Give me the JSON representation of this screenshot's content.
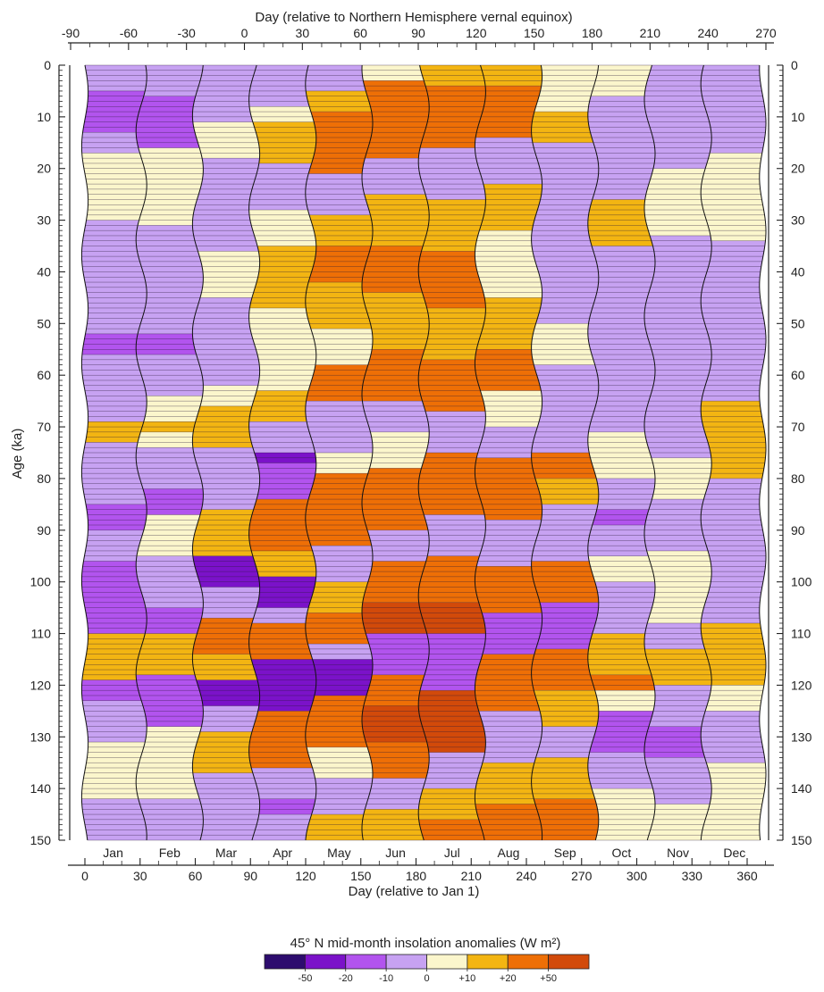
{
  "chart_data": {
    "type": "heatmap",
    "top_axis": {
      "label": "Day (relative to Northern Hemisphere vernal equinox)",
      "ticks": [
        "-90",
        "-60",
        "-30",
        "0",
        "30",
        "60",
        "90",
        "120",
        "150",
        "180",
        "210",
        "240",
        "270"
      ],
      "range": [
        -90,
        275
      ]
    },
    "bottom_axis": {
      "label": "Day (relative to Jan 1)",
      "ticks": [
        "0",
        "30",
        "60",
        "90",
        "120",
        "150",
        "180",
        "210",
        "240",
        "270",
        "300",
        "330",
        "360"
      ],
      "range": [
        -3,
        365
      ]
    },
    "y_axis": {
      "label": "Age (ka)",
      "ticks": [
        "0",
        "10",
        "20",
        "30",
        "40",
        "50",
        "60",
        "70",
        "80",
        "90",
        "100",
        "110",
        "120",
        "130",
        "140",
        "150"
      ],
      "range": [
        0,
        150
      ],
      "inverted": true
    },
    "months": [
      "Jan",
      "Feb",
      "Mar",
      "Apr",
      "May",
      "Jun",
      "Jul",
      "Aug",
      "Sep",
      "Oct",
      "Nov",
      "Dec"
    ],
    "legend": {
      "title": "45° N mid-month insolation anomalies (W m²)",
      "boundaries": [
        "-50",
        "-20",
        "-10",
        "0",
        "+10",
        "+20",
        "+50"
      ],
      "colors": [
        "#2d0c6e",
        "#7b12c9",
        "#b254ee",
        "#c7a2f2",
        "#fbf6cc",
        "#f3b512",
        "#ee6f06",
        "#d24a0a"
      ]
    },
    "segments": [
      [
        [
          0,
          5,
          3
        ],
        [
          5,
          13,
          2
        ],
        [
          13,
          17,
          3
        ],
        [
          17,
          30,
          4
        ],
        [
          30,
          150,
          3
        ],
        [
          52,
          56,
          2
        ],
        [
          69,
          73,
          5
        ],
        [
          85,
          90,
          2
        ],
        [
          96,
          110,
          2
        ],
        [
          110,
          119,
          5
        ],
        [
          119,
          123,
          2
        ],
        [
          123,
          131,
          3
        ],
        [
          131,
          142,
          4
        ],
        [
          142,
          150,
          3
        ]
      ],
      [
        [
          0,
          6,
          3
        ],
        [
          6,
          16,
          2
        ],
        [
          16,
          31,
          4
        ],
        [
          31,
          64,
          3
        ],
        [
          52,
          56,
          2
        ],
        [
          64,
          74,
          4
        ],
        [
          69,
          71,
          5
        ],
        [
          74,
          82,
          3
        ],
        [
          82,
          87,
          2
        ],
        [
          87,
          95,
          4
        ],
        [
          95,
          105,
          3
        ],
        [
          105,
          110,
          2
        ],
        [
          110,
          118,
          5
        ],
        [
          118,
          128,
          2
        ],
        [
          128,
          142,
          4
        ],
        [
          142,
          150,
          3
        ]
      ],
      [
        [
          0,
          11,
          3
        ],
        [
          11,
          18,
          4
        ],
        [
          18,
          36,
          3
        ],
        [
          36,
          45,
          4
        ],
        [
          45,
          62,
          3
        ],
        [
          62,
          66,
          4
        ],
        [
          66,
          74,
          5
        ],
        [
          74,
          86,
          3
        ],
        [
          86,
          95,
          5
        ],
        [
          95,
          101,
          1
        ],
        [
          101,
          107,
          3
        ],
        [
          107,
          114,
          6
        ],
        [
          114,
          119,
          5
        ],
        [
          119,
          124,
          1
        ],
        [
          124,
          129,
          3
        ],
        [
          129,
          137,
          5
        ],
        [
          137,
          150,
          3
        ]
      ],
      [
        [
          0,
          8,
          3
        ],
        [
          8,
          11,
          4
        ],
        [
          11,
          19,
          5
        ],
        [
          19,
          28,
          3
        ],
        [
          28,
          35,
          4
        ],
        [
          35,
          47,
          5
        ],
        [
          47,
          63,
          4
        ],
        [
          63,
          69,
          5
        ],
        [
          69,
          75,
          3
        ],
        [
          75,
          77,
          1
        ],
        [
          77,
          84,
          2
        ],
        [
          84,
          94,
          6
        ],
        [
          94,
          99,
          5
        ],
        [
          99,
          105,
          1
        ],
        [
          105,
          108,
          3
        ],
        [
          108,
          115,
          6
        ],
        [
          115,
          125,
          1
        ],
        [
          125,
          136,
          6
        ],
        [
          136,
          142,
          3
        ],
        [
          142,
          145,
          2
        ],
        [
          145,
          150,
          3
        ]
      ],
      [
        [
          0,
          5,
          3
        ],
        [
          5,
          9,
          5
        ],
        [
          9,
          21,
          6
        ],
        [
          21,
          29,
          3
        ],
        [
          29,
          35,
          5
        ],
        [
          35,
          42,
          6
        ],
        [
          42,
          51,
          5
        ],
        [
          51,
          58,
          4
        ],
        [
          58,
          65,
          6
        ],
        [
          65,
          75,
          3
        ],
        [
          75,
          79,
          4
        ],
        [
          79,
          93,
          6
        ],
        [
          93,
          100,
          3
        ],
        [
          100,
          106,
          5
        ],
        [
          106,
          112,
          6
        ],
        [
          112,
          115,
          3
        ],
        [
          115,
          122,
          1
        ],
        [
          122,
          132,
          6
        ],
        [
          132,
          138,
          4
        ],
        [
          138,
          145,
          3
        ],
        [
          145,
          150,
          5
        ]
      ],
      [
        [
          0,
          3,
          4
        ],
        [
          3,
          18,
          6
        ],
        [
          18,
          25,
          3
        ],
        [
          25,
          35,
          5
        ],
        [
          35,
          44,
          6
        ],
        [
          44,
          55,
          5
        ],
        [
          55,
          65,
          6
        ],
        [
          65,
          71,
          3
        ],
        [
          71,
          78,
          4
        ],
        [
          78,
          90,
          6
        ],
        [
          90,
          96,
          3
        ],
        [
          96,
          104,
          6
        ],
        [
          104,
          110,
          7
        ],
        [
          110,
          118,
          2
        ],
        [
          118,
          124,
          6
        ],
        [
          124,
          131,
          7
        ],
        [
          131,
          138,
          6
        ],
        [
          138,
          144,
          3
        ],
        [
          144,
          150,
          5
        ]
      ],
      [
        [
          0,
          4,
          5
        ],
        [
          4,
          16,
          6
        ],
        [
          16,
          26,
          3
        ],
        [
          26,
          36,
          5
        ],
        [
          36,
          47,
          6
        ],
        [
          47,
          57,
          5
        ],
        [
          57,
          67,
          6
        ],
        [
          67,
          75,
          3
        ],
        [
          75,
          87,
          6
        ],
        [
          87,
          95,
          3
        ],
        [
          95,
          104,
          6
        ],
        [
          104,
          110,
          7
        ],
        [
          110,
          121,
          2
        ],
        [
          121,
          133,
          7
        ],
        [
          133,
          140,
          3
        ],
        [
          140,
          146,
          5
        ],
        [
          146,
          150,
          6
        ]
      ],
      [
        [
          0,
          4,
          5
        ],
        [
          4,
          14,
          6
        ],
        [
          14,
          23,
          3
        ],
        [
          23,
          32,
          5
        ],
        [
          32,
          45,
          4
        ],
        [
          45,
          55,
          5
        ],
        [
          55,
          63,
          6
        ],
        [
          63,
          70,
          4
        ],
        [
          70,
          76,
          3
        ],
        [
          76,
          88,
          6
        ],
        [
          88,
          97,
          3
        ],
        [
          97,
          106,
          6
        ],
        [
          106,
          114,
          2
        ],
        [
          114,
          125,
          6
        ],
        [
          125,
          135,
          3
        ],
        [
          135,
          143,
          5
        ],
        [
          143,
          150,
          6
        ]
      ],
      [
        [
          0,
          9,
          4
        ],
        [
          9,
          15,
          5
        ],
        [
          15,
          33,
          3
        ],
        [
          33,
          50,
          3
        ],
        [
          50,
          58,
          4
        ],
        [
          58,
          75,
          3
        ],
        [
          75,
          80,
          6
        ],
        [
          80,
          85,
          5
        ],
        [
          85,
          96,
          3
        ],
        [
          96,
          104,
          6
        ],
        [
          104,
          113,
          2
        ],
        [
          113,
          121,
          6
        ],
        [
          121,
          128,
          5
        ],
        [
          128,
          134,
          3
        ],
        [
          134,
          142,
          5
        ],
        [
          142,
          150,
          6
        ]
      ],
      [
        [
          0,
          6,
          4
        ],
        [
          6,
          26,
          3
        ],
        [
          26,
          35,
          5
        ],
        [
          35,
          71,
          3
        ],
        [
          71,
          80,
          4
        ],
        [
          80,
          95,
          3
        ],
        [
          86,
          89,
          2
        ],
        [
          95,
          100,
          4
        ],
        [
          100,
          110,
          3
        ],
        [
          110,
          118,
          5
        ],
        [
          118,
          121,
          6
        ],
        [
          121,
          125,
          4
        ],
        [
          125,
          133,
          2
        ],
        [
          133,
          140,
          3
        ],
        [
          140,
          150,
          4
        ]
      ],
      [
        [
          0,
          4,
          3
        ],
        [
          4,
          20,
          3
        ],
        [
          20,
          33,
          4
        ],
        [
          33,
          76,
          3
        ],
        [
          76,
          84,
          4
        ],
        [
          84,
          94,
          3
        ],
        [
          94,
          108,
          4
        ],
        [
          108,
          113,
          3
        ],
        [
          113,
          120,
          5
        ],
        [
          120,
          128,
          3
        ],
        [
          128,
          134,
          2
        ],
        [
          134,
          143,
          3
        ],
        [
          143,
          150,
          4
        ]
      ],
      [
        [
          0,
          17,
          3
        ],
        [
          17,
          34,
          4
        ],
        [
          34,
          65,
          3
        ],
        [
          65,
          80,
          5
        ],
        [
          80,
          89,
          3
        ],
        [
          89,
          108,
          3
        ],
        [
          108,
          120,
          5
        ],
        [
          120,
          125,
          4
        ],
        [
          125,
          135,
          3
        ],
        [
          135,
          150,
          4
        ]
      ]
    ]
  }
}
